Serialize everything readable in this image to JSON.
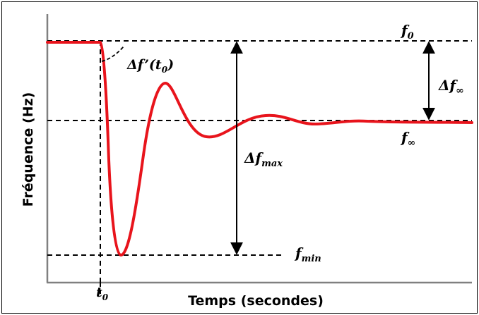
{
  "axes": {
    "xlabel": "Temps (secondes)",
    "ylabel": "Fréquence (Hz)"
  },
  "labels": {
    "t0": {
      "main": "t",
      "sub": "0"
    },
    "f0": {
      "main": "f",
      "sub": "0"
    },
    "finf": {
      "main": "f",
      "sub": "∞"
    },
    "fmin": {
      "main": "f",
      "sub": "min"
    },
    "delta_finf": {
      "pre": "Δf",
      "sub": "∞"
    },
    "delta_fmax": {
      "pre": "Δf",
      "sub": "max"
    },
    "rocof": {
      "pre": "Δf’(t",
      "sub": "0",
      "post": ")"
    }
  },
  "colors": {
    "response": "#e8141c",
    "ink": "#000000",
    "axes": "#808080"
  }
}
